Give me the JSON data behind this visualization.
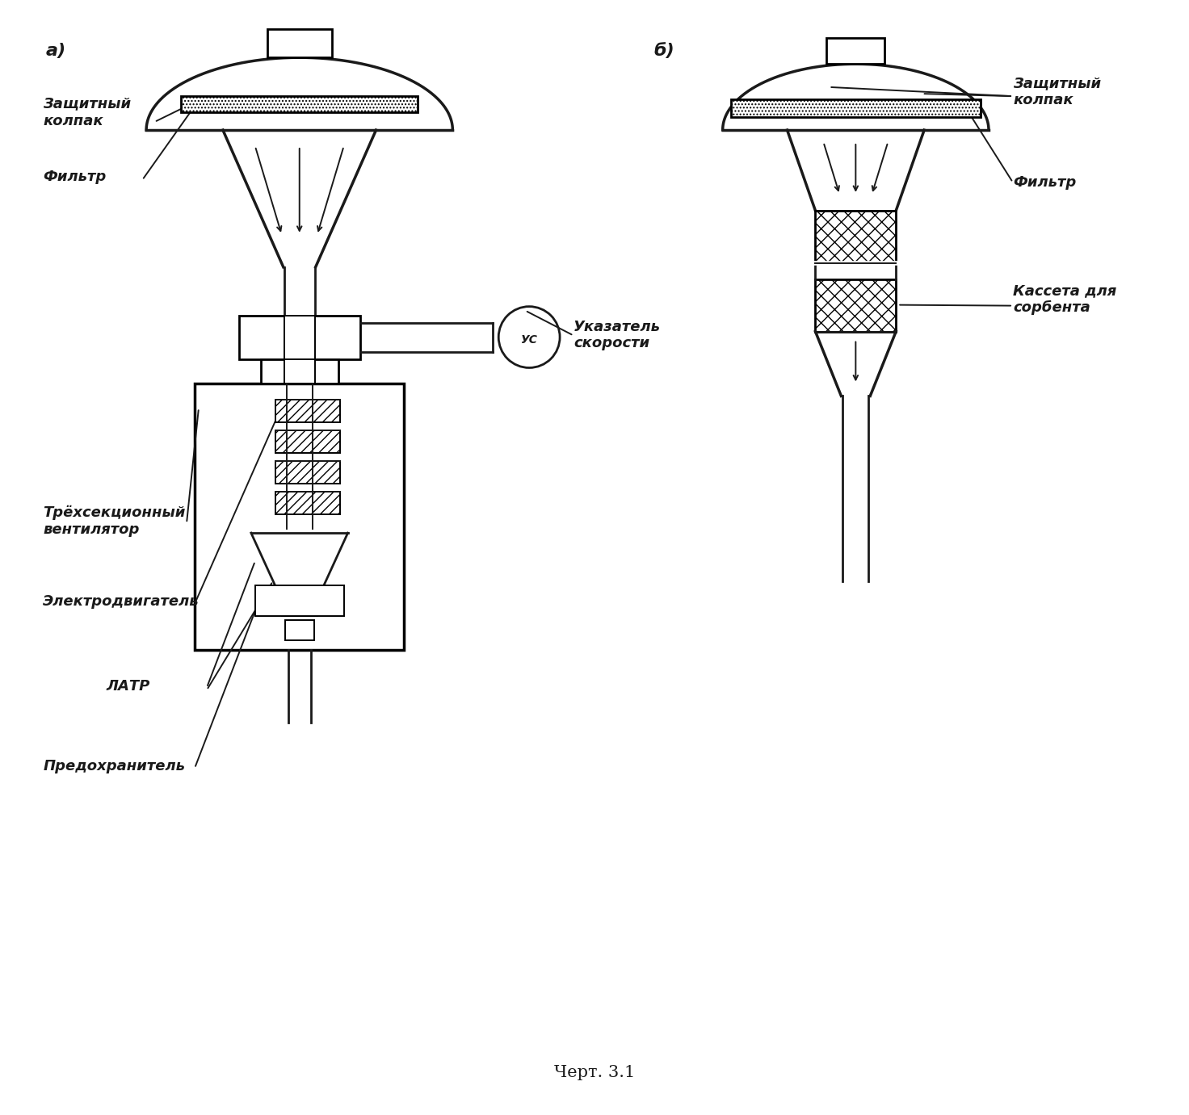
{
  "title": "Черт. 3.1",
  "label_a": "а)",
  "label_b": "б)",
  "bg_color": "#ffffff",
  "line_color": "#1a1a1a",
  "annotations_a": {
    "zashchitny_kolpak": "Защитный\nколпак",
    "filtr": "Фильтр",
    "ukazatel_skorosti": "Указатель\nскорости",
    "trekhsektsionny": "Трёхсекционный\nвентилятор",
    "elektrodvigatel": "Электродвигатель",
    "latr": "ЛАТР",
    "predokhranitel": "Предохранитель"
  },
  "annotations_b": {
    "zashchitny_kolpak": "Защитный\nколпак",
    "filtr": "Фильтр",
    "kasseta": "Кассета для\nсорбента"
  },
  "us_label": "УС"
}
